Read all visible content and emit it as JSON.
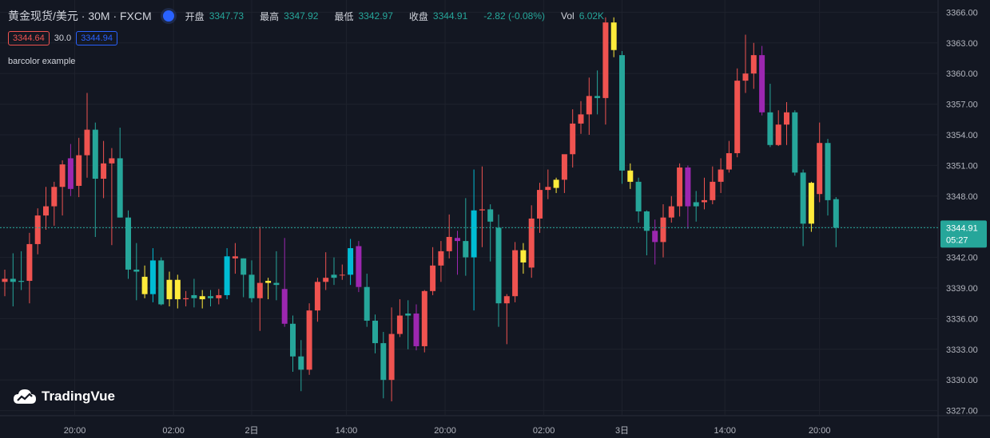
{
  "legend": {
    "title": "黄金现货/美元 · 30M · FXCM",
    "open_label": "开盘",
    "open": "3347.73",
    "high_label": "最高",
    "high": "3347.92",
    "low_label": "最低",
    "low": "3342.97",
    "close_label": "收盘",
    "close": "3344.91",
    "change": "-2.82 (-0.08%)",
    "vol_label": "Vol",
    "vol": "6.02K"
  },
  "quote": {
    "bid": "3344.64",
    "spread": "30.0",
    "ask": "3344.94"
  },
  "indicator": {
    "name": "barcolor example"
  },
  "price_tag": {
    "price": "3344.91",
    "countdown": "05:27"
  },
  "logo": {
    "text": "TradingVue"
  },
  "colors": {
    "up": "#ef5350",
    "down": "#26a69a",
    "yellow": "#ffeb3b",
    "cyan": "#00bcd4",
    "purple": "#9c27b0",
    "bg": "#131722"
  },
  "chart_data": {
    "type": "candlestick",
    "y_ticks": [
      "3366.00",
      "3363.00",
      "3360.00",
      "3357.00",
      "3354.00",
      "3351.00",
      "3348.00",
      "3345.00",
      "3342.00",
      "3339.00",
      "3336.00",
      "3333.00",
      "3330.00",
      "3327.00"
    ],
    "ylim": [
      3326.5,
      3367.2
    ],
    "x_ticks": [
      {
        "label": "20:00",
        "index": 8.5
      },
      {
        "label": "02:00",
        "index": 20.5
      },
      {
        "label": "2日",
        "index": 30
      },
      {
        "label": "14:00",
        "index": 41.5
      },
      {
        "label": "20:00",
        "index": 53.5
      },
      {
        "label": "02:00",
        "index": 65.5
      },
      {
        "label": "3日",
        "index": 75
      },
      {
        "label": "14:00",
        "index": 87.5
      },
      {
        "label": "20:00",
        "index": 99
      }
    ],
    "last_price": 3344.91,
    "candles": [
      {
        "o": 3339.6,
        "h": 3340.8,
        "l": 3338.2,
        "c": 3339.9,
        "col": "up"
      },
      {
        "o": 3339.9,
        "h": 3342.4,
        "l": 3337.2,
        "c": 3339.6,
        "col": "down"
      },
      {
        "o": 3339.6,
        "h": 3342.6,
        "l": 3338.8,
        "c": 3339.7,
        "col": "down"
      },
      {
        "o": 3339.7,
        "h": 3344.4,
        "l": 3337.5,
        "c": 3343.3,
        "col": "up"
      },
      {
        "o": 3343.3,
        "h": 3346.8,
        "l": 3342.3,
        "c": 3346.1,
        "col": "up"
      },
      {
        "o": 3346.1,
        "h": 3348.9,
        "l": 3344.7,
        "c": 3347.0,
        "col": "up"
      },
      {
        "o": 3347.0,
        "h": 3349.4,
        "l": 3345.1,
        "c": 3348.9,
        "col": "up"
      },
      {
        "o": 3348.9,
        "h": 3351.5,
        "l": 3346.1,
        "c": 3351.1,
        "col": "up"
      },
      {
        "o": 3348.7,
        "h": 3353.1,
        "l": 3348.0,
        "c": 3351.7,
        "col": "purple"
      },
      {
        "o": 3349.0,
        "h": 3353.7,
        "l": 3347.9,
        "c": 3352.0,
        "col": "up"
      },
      {
        "o": 3352.0,
        "h": 3358.1,
        "l": 3349.8,
        "c": 3354.5,
        "col": "up"
      },
      {
        "o": 3354.5,
        "h": 3355.2,
        "l": 3344.0,
        "c": 3349.7,
        "col": "down"
      },
      {
        "o": 3349.7,
        "h": 3353.4,
        "l": 3347.8,
        "c": 3351.2,
        "col": "up"
      },
      {
        "o": 3351.2,
        "h": 3352.7,
        "l": 3343.2,
        "c": 3351.7,
        "col": "up"
      },
      {
        "o": 3351.7,
        "h": 3354.7,
        "l": 3345.9,
        "c": 3345.9,
        "col": "down"
      },
      {
        "o": 3345.9,
        "h": 3346.6,
        "l": 3339.9,
        "c": 3340.8,
        "col": "down"
      },
      {
        "o": 3340.8,
        "h": 3343.4,
        "l": 3337.8,
        "c": 3340.6,
        "col": "down"
      },
      {
        "o": 3340.1,
        "h": 3341.2,
        "l": 3338.0,
        "c": 3338.4,
        "col": "yellow"
      },
      {
        "o": 3338.4,
        "h": 3342.9,
        "l": 3337.6,
        "c": 3341.7,
        "col": "cyan"
      },
      {
        "o": 3341.7,
        "h": 3342.0,
        "l": 3337.3,
        "c": 3337.4,
        "col": "down"
      },
      {
        "o": 3339.8,
        "h": 3340.6,
        "l": 3337.2,
        "c": 3337.9,
        "col": "yellow"
      },
      {
        "o": 3339.8,
        "h": 3340.3,
        "l": 3337.0,
        "c": 3337.9,
        "col": "yellow"
      },
      {
        "o": 3337.9,
        "h": 3338.7,
        "l": 3337.2,
        "c": 3338.0,
        "col": "up"
      },
      {
        "o": 3338.0,
        "h": 3339.9,
        "l": 3337.1,
        "c": 3338.3,
        "col": "down"
      },
      {
        "o": 3337.9,
        "h": 3338.8,
        "l": 3337.0,
        "c": 3338.2,
        "col": "yellow"
      },
      {
        "o": 3338.2,
        "h": 3338.8,
        "l": 3337.2,
        "c": 3338.0,
        "col": "down"
      },
      {
        "o": 3338.0,
        "h": 3338.9,
        "l": 3337.4,
        "c": 3338.3,
        "col": "up"
      },
      {
        "o": 3338.3,
        "h": 3342.9,
        "l": 3337.9,
        "c": 3342.1,
        "col": "cyan"
      },
      {
        "o": 3342.1,
        "h": 3343.4,
        "l": 3340.4,
        "c": 3341.9,
        "col": "up"
      },
      {
        "o": 3341.9,
        "h": 3341.9,
        "l": 3338.1,
        "c": 3340.3,
        "col": "down"
      },
      {
        "o": 3340.3,
        "h": 3341.7,
        "l": 3337.6,
        "c": 3338.0,
        "col": "down"
      },
      {
        "o": 3338.0,
        "h": 3345.0,
        "l": 3334.8,
        "c": 3339.5,
        "col": "up"
      },
      {
        "o": 3339.7,
        "h": 3340.0,
        "l": 3337.9,
        "c": 3339.5,
        "col": "yellow"
      },
      {
        "o": 3339.5,
        "h": 3342.6,
        "l": 3337.8,
        "c": 3339.3,
        "col": "down"
      },
      {
        "o": 3338.9,
        "h": 3343.9,
        "l": 3335.2,
        "c": 3335.5,
        "col": "purple"
      },
      {
        "o": 3335.5,
        "h": 3336.3,
        "l": 3330.8,
        "c": 3332.3,
        "col": "down"
      },
      {
        "o": 3332.3,
        "h": 3333.9,
        "l": 3328.9,
        "c": 3331.0,
        "col": "down"
      },
      {
        "o": 3331.0,
        "h": 3337.5,
        "l": 3330.5,
        "c": 3336.8,
        "col": "up"
      },
      {
        "o": 3336.8,
        "h": 3340.0,
        "l": 3335.7,
        "c": 3339.6,
        "col": "up"
      },
      {
        "o": 3339.6,
        "h": 3342.5,
        "l": 3338.8,
        "c": 3340.0,
        "col": "up"
      },
      {
        "o": 3340.0,
        "h": 3342.0,
        "l": 3339.3,
        "c": 3340.3,
        "col": "down"
      },
      {
        "o": 3340.3,
        "h": 3341.3,
        "l": 3339.8,
        "c": 3340.3,
        "col": "up"
      },
      {
        "o": 3340.3,
        "h": 3343.8,
        "l": 3339.3,
        "c": 3342.9,
        "col": "cyan"
      },
      {
        "o": 3339.1,
        "h": 3343.6,
        "l": 3338.6,
        "c": 3343.1,
        "col": "purple"
      },
      {
        "o": 3339.1,
        "h": 3340.4,
        "l": 3335.2,
        "c": 3335.8,
        "col": "down"
      },
      {
        "o": 3335.8,
        "h": 3336.4,
        "l": 3332.6,
        "c": 3333.6,
        "col": "down"
      },
      {
        "o": 3333.6,
        "h": 3334.7,
        "l": 3328.2,
        "c": 3330.0,
        "col": "down"
      },
      {
        "o": 3330.0,
        "h": 3337.1,
        "l": 3327.9,
        "c": 3334.5,
        "col": "up"
      },
      {
        "o": 3334.5,
        "h": 3337.9,
        "l": 3334.2,
        "c": 3336.3,
        "col": "up"
      },
      {
        "o": 3336.3,
        "h": 3337.8,
        "l": 3333.0,
        "c": 3336.5,
        "col": "down"
      },
      {
        "o": 3336.5,
        "h": 3337.4,
        "l": 3332.9,
        "c": 3333.3,
        "col": "purple"
      },
      {
        "o": 3333.3,
        "h": 3338.8,
        "l": 3332.7,
        "c": 3338.7,
        "col": "up"
      },
      {
        "o": 3338.7,
        "h": 3343.0,
        "l": 3338.3,
        "c": 3341.2,
        "col": "up"
      },
      {
        "o": 3341.2,
        "h": 3343.6,
        "l": 3339.6,
        "c": 3342.6,
        "col": "up"
      },
      {
        "o": 3342.6,
        "h": 3346.2,
        "l": 3341.9,
        "c": 3344.0,
        "col": "up"
      },
      {
        "o": 3343.9,
        "h": 3344.6,
        "l": 3340.3,
        "c": 3343.6,
        "col": "purple"
      },
      {
        "o": 3343.6,
        "h": 3347.8,
        "l": 3340.2,
        "c": 3342.0,
        "col": "down"
      },
      {
        "o": 3342.0,
        "h": 3350.6,
        "l": 3336.8,
        "c": 3346.6,
        "col": "cyan"
      },
      {
        "o": 3346.6,
        "h": 3350.9,
        "l": 3343.0,
        "c": 3346.7,
        "col": "up"
      },
      {
        "o": 3346.7,
        "h": 3347.2,
        "l": 3341.6,
        "c": 3345.5,
        "col": "down"
      },
      {
        "o": 3344.9,
        "h": 3346.2,
        "l": 3335.2,
        "c": 3337.5,
        "col": "down"
      },
      {
        "o": 3337.5,
        "h": 3338.4,
        "l": 3333.5,
        "c": 3338.2,
        "col": "up"
      },
      {
        "o": 3338.2,
        "h": 3343.5,
        "l": 3337.6,
        "c": 3342.7,
        "col": "up"
      },
      {
        "o": 3342.7,
        "h": 3343.4,
        "l": 3340.4,
        "c": 3341.5,
        "col": "yellow"
      },
      {
        "o": 3341.0,
        "h": 3347.1,
        "l": 3340.0,
        "c": 3345.8,
        "col": "up"
      },
      {
        "o": 3345.8,
        "h": 3349.3,
        "l": 3344.4,
        "c": 3348.6,
        "col": "up"
      },
      {
        "o": 3348.6,
        "h": 3350.6,
        "l": 3347.7,
        "c": 3348.9,
        "col": "up"
      },
      {
        "o": 3348.8,
        "h": 3349.8,
        "l": 3348.3,
        "c": 3349.6,
        "col": "yellow"
      },
      {
        "o": 3349.6,
        "h": 3351.9,
        "l": 3348.3,
        "c": 3352.1,
        "col": "up"
      },
      {
        "o": 3352.1,
        "h": 3356.5,
        "l": 3350.8,
        "c": 3355.1,
        "col": "up"
      },
      {
        "o": 3355.1,
        "h": 3357.3,
        "l": 3354.1,
        "c": 3356.0,
        "col": "up"
      },
      {
        "o": 3356.0,
        "h": 3359.6,
        "l": 3354.0,
        "c": 3357.8,
        "col": "up"
      },
      {
        "o": 3357.8,
        "h": 3360.3,
        "l": 3356.0,
        "c": 3357.6,
        "col": "down"
      },
      {
        "o": 3357.6,
        "h": 3365.5,
        "l": 3355.0,
        "c": 3365.0,
        "col": "up"
      },
      {
        "o": 3365.0,
        "h": 3365.5,
        "l": 3361.6,
        "c": 3362.3,
        "col": "yellow"
      },
      {
        "o": 3361.8,
        "h": 3362.2,
        "l": 3349.2,
        "c": 3350.5,
        "col": "down"
      },
      {
        "o": 3350.5,
        "h": 3351.2,
        "l": 3348.7,
        "c": 3349.4,
        "col": "yellow"
      },
      {
        "o": 3349.4,
        "h": 3349.8,
        "l": 3345.4,
        "c": 3346.5,
        "col": "down"
      },
      {
        "o": 3346.5,
        "h": 3346.6,
        "l": 3342.2,
        "c": 3344.6,
        "col": "down"
      },
      {
        "o": 3344.6,
        "h": 3345.7,
        "l": 3341.3,
        "c": 3343.5,
        "col": "purple"
      },
      {
        "o": 3343.5,
        "h": 3347.2,
        "l": 3342.0,
        "c": 3345.9,
        "col": "up"
      },
      {
        "o": 3345.9,
        "h": 3348.0,
        "l": 3345.4,
        "c": 3347.0,
        "col": "up"
      },
      {
        "o": 3347.0,
        "h": 3351.2,
        "l": 3346.0,
        "c": 3350.8,
        "col": "up"
      },
      {
        "o": 3350.8,
        "h": 3351.0,
        "l": 3344.8,
        "c": 3347.0,
        "col": "purple"
      },
      {
        "o": 3347.0,
        "h": 3348.5,
        "l": 3345.5,
        "c": 3347.4,
        "col": "down"
      },
      {
        "o": 3347.4,
        "h": 3349.8,
        "l": 3346.7,
        "c": 3347.6,
        "col": "up"
      },
      {
        "o": 3347.6,
        "h": 3350.9,
        "l": 3347.2,
        "c": 3349.4,
        "col": "up"
      },
      {
        "o": 3349.4,
        "h": 3351.7,
        "l": 3348.3,
        "c": 3350.6,
        "col": "up"
      },
      {
        "o": 3350.6,
        "h": 3353.4,
        "l": 3350.3,
        "c": 3352.2,
        "col": "up"
      },
      {
        "o": 3352.2,
        "h": 3360.5,
        "l": 3351.8,
        "c": 3359.3,
        "col": "up"
      },
      {
        "o": 3359.3,
        "h": 3363.8,
        "l": 3358.1,
        "c": 3360.0,
        "col": "up"
      },
      {
        "o": 3360.0,
        "h": 3363.0,
        "l": 3358.5,
        "c": 3361.8,
        "col": "up"
      },
      {
        "o": 3361.8,
        "h": 3362.7,
        "l": 3355.9,
        "c": 3356.2,
        "col": "purple"
      },
      {
        "o": 3356.2,
        "h": 3359.0,
        "l": 3352.8,
        "c": 3353.0,
        "col": "down"
      },
      {
        "o": 3353.0,
        "h": 3356.4,
        "l": 3352.9,
        "c": 3355.0,
        "col": "up"
      },
      {
        "o": 3355.0,
        "h": 3357.2,
        "l": 3353.0,
        "c": 3356.2,
        "col": "up"
      },
      {
        "o": 3356.2,
        "h": 3356.4,
        "l": 3350.0,
        "c": 3350.3,
        "col": "down"
      },
      {
        "o": 3350.3,
        "h": 3350.6,
        "l": 3343.1,
        "c": 3345.3,
        "col": "down"
      },
      {
        "o": 3345.3,
        "h": 3349.4,
        "l": 3344.5,
        "c": 3349.3,
        "col": "yellow"
      },
      {
        "o": 3348.2,
        "h": 3355.2,
        "l": 3347.4,
        "c": 3353.2,
        "col": "up"
      },
      {
        "o": 3353.2,
        "h": 3353.6,
        "l": 3346.1,
        "c": 3347.6,
        "col": "down"
      },
      {
        "o": 3347.7,
        "h": 3347.9,
        "l": 3343.0,
        "c": 3344.9,
        "col": "down"
      }
    ]
  }
}
